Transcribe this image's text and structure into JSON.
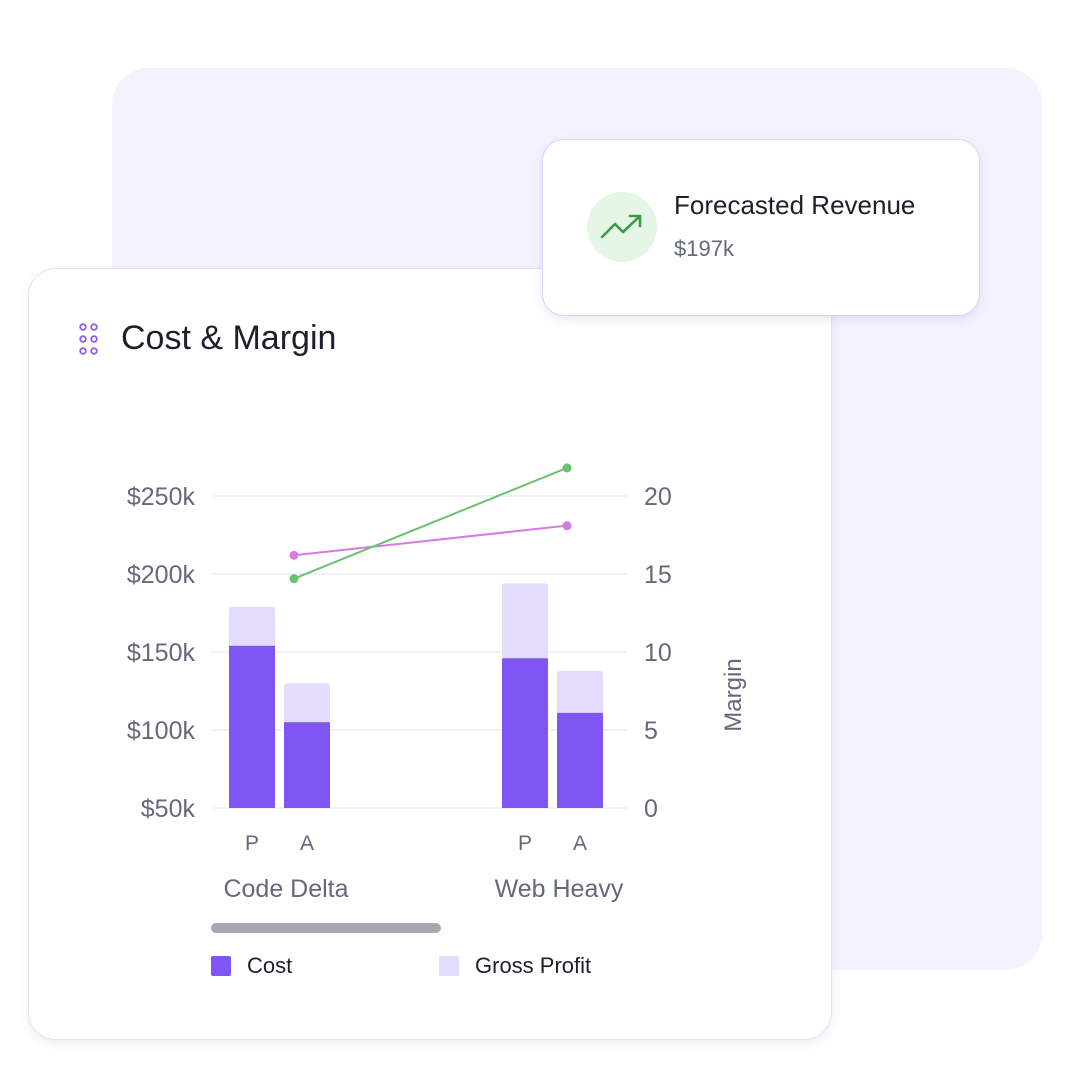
{
  "forecast_card": {
    "title": "Forecasted Revenue",
    "value": "$197k",
    "icon": "trending-up-icon",
    "icon_color": "#3a9a48",
    "icon_bg": "#e5f5e6"
  },
  "chart_card": {
    "title": "Cost & Margin",
    "icon": "drag-handle-icon",
    "icon_color": "#8b5cf6"
  },
  "colors": {
    "cost": "#7f56f4",
    "gross_profit": "#e3dcfc",
    "margin_planned": "#d57ddf",
    "margin_actual": "#6cc070",
    "axis_text": "#646a7b",
    "grid": "#eeeef3"
  },
  "chart_data": {
    "type": "bar",
    "stacked": true,
    "groups": [
      "Code Delta",
      "Web Heavy"
    ],
    "sub_categories": [
      "P",
      "A"
    ],
    "series": [
      {
        "name": "Cost",
        "values": [
          [
            154,
            105
          ],
          [
            146,
            111
          ]
        ]
      },
      {
        "name": "Gross Profit",
        "values": [
          [
            25,
            25
          ],
          [
            48,
            27
          ]
        ]
      }
    ],
    "line_series": [
      {
        "values": [
          16.2,
          18.1
        ],
        "axis": "right"
      },
      {
        "values": [
          14.7,
          21.8
        ],
        "axis": "right"
      }
    ],
    "y_left": {
      "ticks": [
        "$250k",
        "$200k",
        "$150k",
        "$100k",
        "$50k"
      ],
      "range": [
        50,
        250
      ],
      "unit": "k$"
    },
    "y_right": {
      "label": "Margin",
      "ticks": [
        "20",
        "15",
        "10",
        "5",
        "0"
      ],
      "range": [
        0,
        20
      ]
    },
    "grid": true,
    "legend": {
      "position": "bottom",
      "items": [
        "Cost",
        "Gross Profit"
      ]
    }
  }
}
